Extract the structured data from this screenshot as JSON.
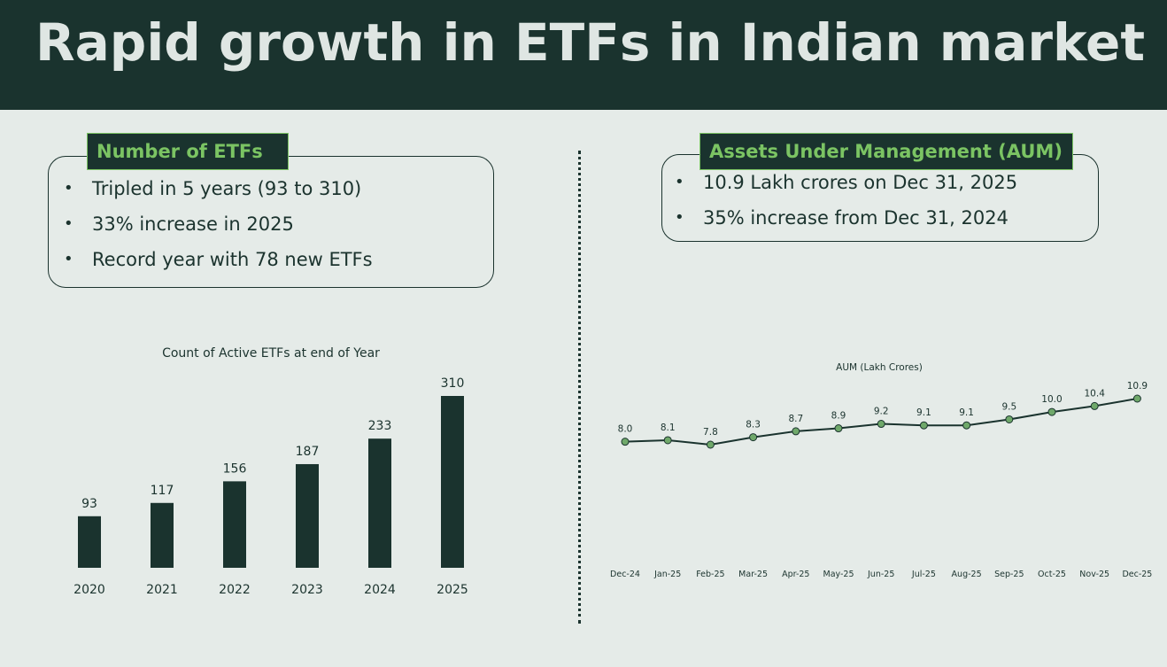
{
  "page": {
    "title": "Rapid growth in ETFs in Indian market"
  },
  "colors": {
    "dark": "#1a332e",
    "accent": "#7bc463",
    "background": "#e5ebe8",
    "marker": "#6fa86a"
  },
  "left_card": {
    "heading": "Number of ETFs",
    "bullets": [
      "Tripled in 5 years (93 to 310)",
      "33% increase in 2025",
      "Record year with 78 new ETFs"
    ]
  },
  "right_card": {
    "heading": "Assets Under Management (AUM)",
    "bullets": [
      "10.9 Lakh crores on Dec 31, 2025",
      "35% increase from Dec 31, 2024"
    ]
  },
  "chart_data": [
    {
      "type": "bar",
      "title": "Count of Active ETFs at end of Year",
      "categories": [
        "2020",
        "2021",
        "2022",
        "2023",
        "2024",
        "2025"
      ],
      "values": [
        93,
        117,
        156,
        187,
        233,
        310
      ],
      "ylim": [
        0,
        310
      ],
      "xlabel": "",
      "ylabel": "",
      "grid": false
    },
    {
      "type": "line",
      "title": "AUM (Lakh Crores)",
      "categories": [
        "Dec-24",
        "Jan-25",
        "Feb-25",
        "Mar-25",
        "Apr-25",
        "May-25",
        "Jun-25",
        "Jul-25",
        "Aug-25",
        "Sep-25",
        "Oct-25",
        "Nov-25",
        "Dec-25"
      ],
      "values": [
        8.0,
        8.1,
        7.8,
        8.3,
        8.7,
        8.9,
        9.2,
        9.1,
        9.1,
        9.5,
        10.0,
        10.4,
        10.9
      ],
      "value_labels": [
        "8.0",
        "8.1",
        "7.8",
        "8.3",
        "8.7",
        "8.9",
        "9.2",
        "9.1",
        "9.1",
        "9.5",
        "10.0",
        "10.4",
        "10.9"
      ],
      "ylim": [
        7.8,
        10.9
      ],
      "xlabel": "",
      "ylabel": "",
      "grid": false
    }
  ]
}
